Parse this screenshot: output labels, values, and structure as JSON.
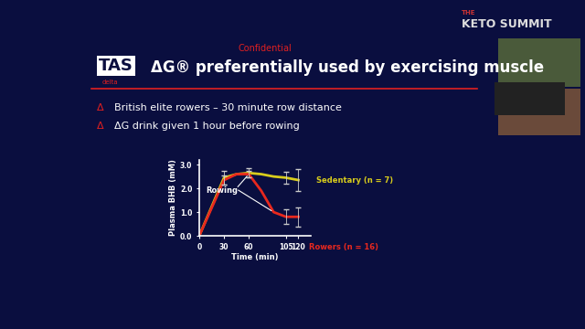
{
  "slide": {
    "confidential": "Confidential",
    "logo": {
      "text": "TAS",
      "subtext": "delta"
    },
    "title": "ΔG® preferentially used by exercising muscle",
    "bullet": "Δ",
    "bullets": [
      "British elite rowers – 30 minute row distance",
      "ΔG drink given 1 hour before rowing"
    ],
    "brand": {
      "line1": "THE",
      "line2": "KETO SUMMIT"
    }
  },
  "chart_data": {
    "type": "line",
    "x": [
      0,
      30,
      45,
      60,
      75,
      90,
      105,
      120
    ],
    "xlabel": "Time (min)",
    "ylabel": "Plasma BHB (mM)",
    "xlim": [
      0,
      135
    ],
    "ylim": [
      0,
      3.2
    ],
    "xticks": [
      0,
      30,
      60,
      105,
      120
    ],
    "yticks": [
      {
        "value": 0,
        "label": "0.0"
      },
      {
        "value": 1,
        "label": "1.0"
      },
      {
        "value": 2,
        "label": "2.0"
      },
      {
        "value": 3,
        "label": "3.0"
      }
    ],
    "annotation": "Rowing",
    "series": [
      {
        "name": "Sedentary (n = 7)",
        "color": "#d8cc1c",
        "values": [
          0,
          2.45,
          2.6,
          2.65,
          2.6,
          2.5,
          2.45,
          2.35
        ],
        "errors": [
          null,
          0.3,
          null,
          0.2,
          null,
          null,
          0.25,
          0.45
        ]
      },
      {
        "name": "Rowers (n = 16)",
        "color": "#e8281e",
        "values": [
          0,
          2.35,
          2.6,
          2.6,
          1.9,
          1.0,
          0.8,
          0.8
        ],
        "errors": [
          null,
          0.2,
          null,
          0.15,
          null,
          null,
          0.3,
          0.4
        ]
      }
    ]
  }
}
